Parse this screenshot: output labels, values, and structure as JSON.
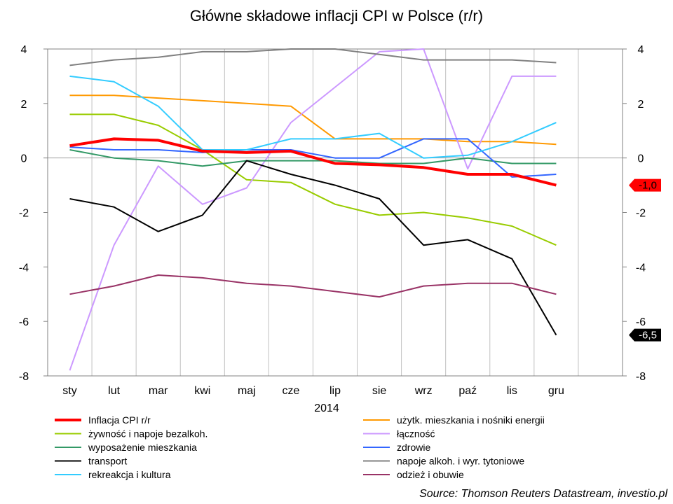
{
  "chart_data": {
    "type": "line",
    "title": "Główne składowe inflacji CPI w Polsce (r/r)",
    "xlabel": "2014",
    "ylabel": "",
    "categories": [
      "sty",
      "lut",
      "mar",
      "kwi",
      "maj",
      "cze",
      "lip",
      "sie",
      "wrz",
      "paź",
      "lis",
      "gru"
    ],
    "ylim": [
      -8,
      4
    ],
    "yticks": [
      4,
      2,
      0,
      -2,
      -4,
      -6,
      -8
    ],
    "grid": true,
    "legend_position": "bottom",
    "series": [
      {
        "name": "Inflacja CPI r/r",
        "color": "#ff0000",
        "width": 4,
        "values": [
          0.45,
          0.7,
          0.65,
          0.25,
          0.2,
          0.25,
          -0.2,
          -0.25,
          -0.35,
          -0.6,
          -0.6,
          -1.0
        ]
      },
      {
        "name": "użytk. mieszkania i nośniki energii",
        "color": "#ff9900",
        "width": 2,
        "values": [
          2.3,
          2.3,
          2.2,
          2.1,
          2.0,
          1.9,
          0.7,
          0.7,
          0.7,
          0.6,
          0.6,
          0.5
        ]
      },
      {
        "name": "żywność i napoje bezalkoh.",
        "color": "#99cc00",
        "width": 2,
        "values": [
          1.6,
          1.6,
          1.2,
          0.3,
          -0.8,
          -0.9,
          -1.7,
          -2.1,
          -2.0,
          -2.2,
          -2.5,
          -3.2
        ]
      },
      {
        "name": "łączność",
        "color": "#cc99ff",
        "width": 2,
        "values": [
          -7.8,
          -3.2,
          -0.3,
          -1.7,
          -1.1,
          1.3,
          2.6,
          3.9,
          4.0,
          -0.4,
          3.0,
          3.0
        ]
      },
      {
        "name": "wyposażenie mieszkania",
        "color": "#339966",
        "width": 2,
        "values": [
          0.3,
          0.0,
          -0.1,
          -0.3,
          -0.1,
          -0.1,
          -0.1,
          -0.2,
          -0.2,
          0.0,
          -0.2,
          -0.2
        ]
      },
      {
        "name": "zdrowie",
        "color": "#3366ff",
        "width": 2,
        "values": [
          0.4,
          0.3,
          0.3,
          0.2,
          0.3,
          0.3,
          0.0,
          0.0,
          0.7,
          0.7,
          -0.7,
          -0.6
        ]
      },
      {
        "name": "transport",
        "color": "#000000",
        "width": 2,
        "values": [
          -1.5,
          -1.8,
          -2.7,
          -2.1,
          -0.1,
          -0.6,
          -1.0,
          -1.5,
          -3.2,
          -3.0,
          -3.7,
          -6.5
        ]
      },
      {
        "name": "napoje alkoh. i wyr. tytoniowe",
        "color": "#808080",
        "width": 2,
        "values": [
          3.4,
          3.6,
          3.7,
          3.9,
          3.9,
          4.0,
          4.0,
          3.8,
          3.6,
          3.6,
          3.6,
          3.5
        ]
      },
      {
        "name": "rekreakcja i kultura",
        "color": "#33ccff",
        "width": 2,
        "values": [
          3.0,
          2.8,
          1.9,
          0.3,
          0.3,
          0.7,
          0.7,
          0.9,
          0.0,
          0.1,
          0.6,
          1.3
        ]
      },
      {
        "name": "odzież i obuwie",
        "color": "#993366",
        "width": 2,
        "values": [
          -5.0,
          -4.7,
          -4.3,
          -4.4,
          -4.6,
          -4.7,
          -4.9,
          -5.1,
          -4.7,
          -4.6,
          -4.6,
          -5.0
        ]
      }
    ],
    "annotations": [
      {
        "text": "-1,0",
        "value": -1.0,
        "series": "Inflacja CPI r/r",
        "bg": "#ff0000",
        "fg": "#000000"
      },
      {
        "text": "-6,5",
        "value": -6.5,
        "series": "transport",
        "bg": "#000000",
        "fg": "#ffffff"
      }
    ]
  },
  "source": "Source: Thomson Reuters Datastream, investio.pl"
}
